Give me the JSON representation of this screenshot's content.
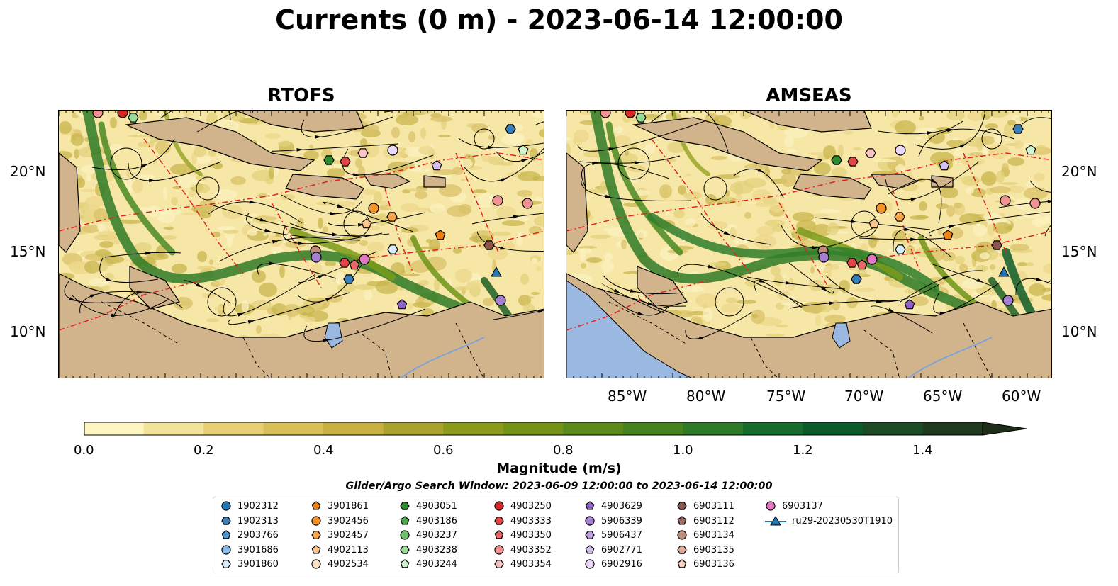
{
  "title": "Currents (0 m) - 2023-06-14 12:00:00",
  "panels": [
    {
      "name": "RTOFS"
    },
    {
      "name": "AMSEAS"
    }
  ],
  "axes": {
    "lat_labels": [
      "20°N",
      "15°N",
      "10°N"
    ],
    "lon_labels": [
      "85°W",
      "80°W",
      "75°W",
      "70°W",
      "65°W",
      "60°W"
    ]
  },
  "colorbar": {
    "label": "Magnitude (m/s)",
    "ticks": [
      "0.0",
      "0.2",
      "0.4",
      "0.6",
      "0.8",
      "1.0",
      "1.2",
      "1.4"
    ],
    "colors": [
      "#fdf6c3",
      "#f2e29a",
      "#e6cf73",
      "#d9bf57",
      "#c7b03f",
      "#a9a22d",
      "#8c9a1c",
      "#739216",
      "#5c8a1a",
      "#468220",
      "#2e7a28",
      "#156c2c",
      "#0b5b2a",
      "#1c4a24",
      "#1f3a1e",
      "#1e2d18"
    ]
  },
  "search_window": "Glider/Argo Search Window: 2023-06-09 12:00:00 to 2023-06-14 12:00:00",
  "legend": [
    {
      "label": "1902312",
      "color": "#1f77b4",
      "marker": "circle"
    },
    {
      "label": "1902313",
      "color": "#3a7fb8",
      "marker": "hexagon"
    },
    {
      "label": "2903766",
      "color": "#4a9ad6",
      "marker": "pentagon"
    },
    {
      "label": "3901686",
      "color": "#8dbde6",
      "marker": "circle"
    },
    {
      "label": "3901860",
      "color": "#d6ecfb",
      "marker": "hexagon"
    },
    {
      "label": "3901861",
      "color": "#f07f10",
      "marker": "pentagon"
    },
    {
      "label": "3902456",
      "color": "#f5922a",
      "marker": "circle"
    },
    {
      "label": "3902457",
      "color": "#f7a54a",
      "marker": "hexagon"
    },
    {
      "label": "4902113",
      "color": "#fbc48c",
      "marker": "pentagon"
    },
    {
      "label": "4902534",
      "color": "#fde3c6",
      "marker": "circle"
    },
    {
      "label": "4903051",
      "color": "#2e8b2e",
      "marker": "hexagon"
    },
    {
      "label": "4903186",
      "color": "#4aa84a",
      "marker": "pentagon"
    },
    {
      "label": "4903237",
      "color": "#6dc26d",
      "marker": "circle"
    },
    {
      "label": "4903238",
      "color": "#98dc98",
      "marker": "hexagon"
    },
    {
      "label": "4903244",
      "color": "#cff5cf",
      "marker": "pentagon"
    },
    {
      "label": "4903250",
      "color": "#d62728",
      "marker": "circle"
    },
    {
      "label": "4903333",
      "color": "#e14545",
      "marker": "hexagon"
    },
    {
      "label": "4903350",
      "color": "#ea6767",
      "marker": "pentagon"
    },
    {
      "label": "4903352",
      "color": "#f29191",
      "marker": "circle"
    },
    {
      "label": "4903354",
      "color": "#fac3c3",
      "marker": "hexagon"
    },
    {
      "label": "4903629",
      "color": "#8e63c4",
      "marker": "pentagon"
    },
    {
      "label": "5906339",
      "color": "#a57fd2",
      "marker": "circle"
    },
    {
      "label": "5906437",
      "color": "#bb9de0",
      "marker": "hexagon"
    },
    {
      "label": "6902771",
      "color": "#d3bff0",
      "marker": "pentagon"
    },
    {
      "label": "6902916",
      "color": "#ead8fa",
      "marker": "circle"
    },
    {
      "label": "6903111",
      "color": "#8c564b",
      "marker": "hexagon"
    },
    {
      "label": "6903112",
      "color": "#a06a5e",
      "marker": "pentagon"
    },
    {
      "label": "6903134",
      "color": "#c08a7a",
      "marker": "circle"
    },
    {
      "label": "6903135",
      "color": "#e0a898",
      "marker": "hexagon"
    },
    {
      "label": "6903136",
      "color": "#f6cdbf",
      "marker": "pentagon"
    },
    {
      "label": "6903137",
      "color": "#e377c2",
      "marker": "circle"
    },
    {
      "label": "ru29-20230530T1910",
      "color": "#1f77b4",
      "marker": "triangle-line"
    }
  ]
}
